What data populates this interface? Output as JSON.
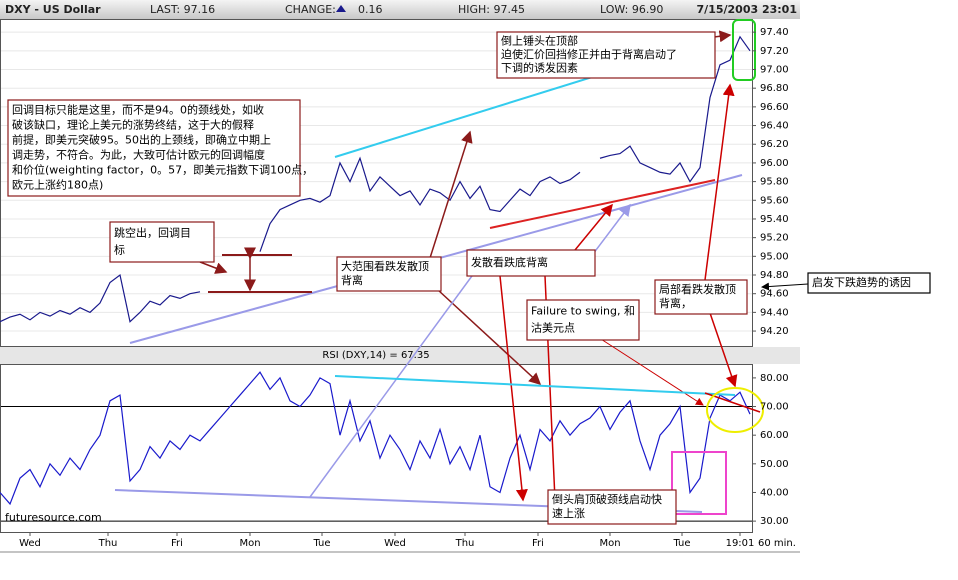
{
  "chart_data": [
    {
      "type": "line",
      "title": "DXY - US Dollar",
      "header_fields": [
        "LAST: 97.16",
        "CHANGE:",
        "0.16",
        "HIGH: 97.45",
        "LOW: 96.90"
      ],
      "datetime": "7/15/2003 23:01",
      "xlim": [
        0,
        75
      ],
      "ylim": [
        94.04,
        97.53
      ],
      "yticks": [
        {
          "value": 94.2,
          "label": "94.20"
        },
        {
          "value": 94.4,
          "label": "94.40"
        },
        {
          "value": 94.6,
          "label": "94.60"
        },
        {
          "value": 94.8,
          "label": "94.80"
        },
        {
          "value": 95.0,
          "label": "95.00"
        },
        {
          "value": 95.2,
          "label": "95.20"
        },
        {
          "value": 95.4,
          "label": "95.40"
        },
        {
          "value": 95.6,
          "label": "95.60"
        },
        {
          "value": 95.8,
          "label": "95.80"
        },
        {
          "value": 96.0,
          "label": "96.00"
        },
        {
          "value": 96.2,
          "label": "96.20"
        },
        {
          "value": 96.4,
          "label": "96.40"
        },
        {
          "value": 96.6,
          "label": "96.60"
        },
        {
          "value": 96.8,
          "label": "96.80"
        },
        {
          "value": 97.0,
          "label": "97.00"
        },
        {
          "value": 97.2,
          "label": "97.20"
        },
        {
          "value": 97.4,
          "label": "97.40"
        }
      ],
      "grid": true,
      "series": [
        {
          "name": "DXY",
          "color": "#1a1a8c",
          "values": [
            94.3,
            94.35,
            94.38,
            94.32,
            94.4,
            94.36,
            94.42,
            94.38,
            94.45,
            94.4,
            94.5,
            94.72,
            94.8,
            94.3,
            94.4,
            94.52,
            94.48,
            94.58,
            94.55,
            94.6,
            94.62,
            null,
            null,
            null,
            null,
            null,
            95.05,
            95.35,
            95.5,
            95.55,
            95.6,
            95.62,
            95.58,
            95.65,
            96.0,
            95.8,
            96.05,
            95.7,
            95.85,
            95.75,
            95.65,
            95.7,
            95.55,
            95.72,
            95.68,
            95.6,
            95.8,
            95.62,
            95.75,
            95.5,
            95.48,
            95.6,
            95.72,
            95.65,
            95.8,
            95.85,
            95.78,
            95.82,
            95.9,
            null,
            96.05,
            96.08,
            96.1,
            96.18,
            96.0,
            95.95,
            95.9,
            95.88,
            96.0,
            95.8,
            95.95,
            96.7,
            97.05,
            97.1,
            97.35,
            97.2
          ]
        }
      ],
      "annotations": [
        {
          "lines": [
            "回调目标只能是这里，而不是94。0的颈线处，如收",
            "破该缺口，理论上美元的涨势终结，这于大的假释",
            "前提，即美元突破95。50出的上颈线，即确立中期上",
            "调走势，不符合。为此，大致可估计欧元的回调幅度",
            "和价位(weighting factor，0。57，即美元指数下调100点，",
            "欧元上涨约180点)"
          ]
        },
        {
          "lines": [
            "跳空出，回调目",
            "标"
          ]
        },
        {
          "lines": [
            "大范围看跌发散顶",
            "背离"
          ]
        },
        {
          "lines": [
            "发散看跌底背离"
          ]
        },
        {
          "lines": [
            "Failure to swing, 和",
            "沽美元点"
          ]
        },
        {
          "lines": [
            "局部看跌发散顶",
            "背离，"
          ]
        },
        {
          "lines": [
            "启发下跌趋势的诱因"
          ]
        },
        {
          "lines": [
            "倒上锤头在顶部",
            "迫使汇价回挡修正并由于背离启动了",
            "下调的诱发因素"
          ]
        },
        {
          "lines": [
            "倒头肩顶破颈线启动快",
            "速上涨"
          ]
        }
      ]
    },
    {
      "type": "line",
      "title": "RSI (DXY,14) = 67.35",
      "watermark": "futuresource.com",
      "interval": "60 min.",
      "xlim": [
        0,
        75
      ],
      "ylim": [
        26.2,
        84.5
      ],
      "yticks": [
        {
          "value": 30,
          "label": "30.00"
        },
        {
          "value": 40,
          "label": "40.00"
        },
        {
          "value": 50,
          "label": "50.00"
        },
        {
          "value": 60,
          "label": "60.00"
        },
        {
          "value": 70,
          "label": "70.00"
        },
        {
          "value": 80,
          "label": "80.00"
        }
      ],
      "levels": [
        70,
        30
      ],
      "xticks": [
        {
          "value": 3,
          "label": "Wed"
        },
        {
          "value": 10.8,
          "label": "Thu"
        },
        {
          "value": 17.7,
          "label": "Fri"
        },
        {
          "value": 25,
          "label": "Mon"
        },
        {
          "value": 32.2,
          "label": "Tue"
        },
        {
          "value": 39.5,
          "label": "Wed"
        },
        {
          "value": 46.5,
          "label": "Thu"
        },
        {
          "value": 53.8,
          "label": "Fri"
        },
        {
          "value": 61,
          "label": "Mon"
        },
        {
          "value": 68.2,
          "label": "Tue"
        },
        {
          "value": 74,
          "label": "19:01"
        }
      ],
      "series": [
        {
          "name": "RSI",
          "color": "#1a1acc",
          "values": [
            40,
            36,
            45,
            48,
            42,
            50,
            46,
            52,
            48,
            55,
            60,
            72,
            74,
            44,
            48,
            56,
            52,
            58,
            55,
            60,
            58,
            62,
            66,
            70,
            74,
            78,
            82,
            76,
            80,
            72,
            70,
            74,
            80,
            78,
            60,
            72,
            58,
            65,
            52,
            60,
            55,
            48,
            58,
            52,
            62,
            50,
            56,
            48,
            60,
            42,
            40,
            52,
            60,
            48,
            62,
            58,
            65,
            60,
            64,
            66,
            70,
            62,
            68,
            72,
            58,
            48,
            60,
            64,
            70,
            40,
            45,
            66,
            74,
            72,
            75,
            67.35
          ]
        }
      ]
    }
  ]
}
